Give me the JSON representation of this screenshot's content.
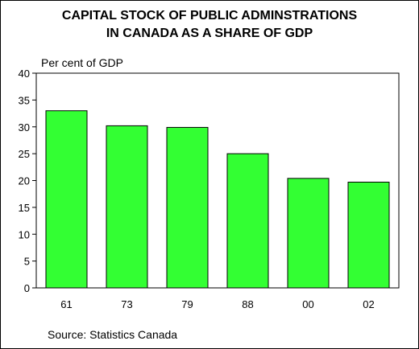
{
  "chart_data": {
    "type": "bar",
    "title_lines": [
      "CAPITAL STOCK OF PUBLIC ADMINSTRATIONS",
      "IN CANADA AS A SHARE OF GDP"
    ],
    "ylabel": "Per cent of GDP",
    "xlabel": "",
    "categories": [
      "61",
      "73",
      "79",
      "88",
      "00",
      "02"
    ],
    "values": [
      33.0,
      30.2,
      29.9,
      25.0,
      20.4,
      19.7
    ],
    "ylim": [
      0,
      40
    ],
    "yticks": [
      0,
      5,
      10,
      15,
      20,
      25,
      30,
      35,
      40
    ],
    "bar_color": "#33ff33",
    "grid": false,
    "source": "Source: Statistics Canada"
  }
}
